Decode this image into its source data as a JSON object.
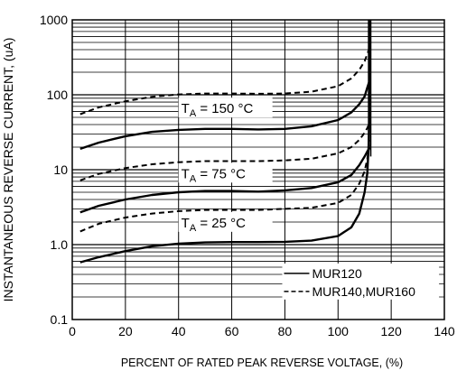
{
  "chart_data": {
    "type": "line",
    "xlabel": "PERCENT OF RATED PEAK REVERSE VOLTAGE, (%)",
    "ylabel": "INSTANTANEOUS REVERSE CURRENT, (uA)",
    "xlim": [
      0,
      140
    ],
    "ylim": [
      0.1,
      1000
    ],
    "yscale": "log",
    "grid": true,
    "x_ticks": [
      "0",
      "20",
      "40",
      "60",
      "80",
      "100",
      "120",
      "140"
    ],
    "y_ticks": [
      {
        "v": 0.1,
        "label": "0.1"
      },
      {
        "v": 1,
        "label": "1.0"
      },
      {
        "v": 10,
        "label": "10"
      },
      {
        "v": 100,
        "label": "100"
      },
      {
        "v": 1000,
        "label": "1000"
      }
    ],
    "legend_position": "bottom-right",
    "series": [
      {
        "name": "MUR120",
        "style": "solid",
        "temperature": "25",
        "x": [
          3,
          10,
          20,
          30,
          40,
          50,
          60,
          70,
          80,
          90,
          100,
          105,
          108,
          110,
          111,
          111.5,
          112,
          112
        ],
        "y": [
          0.58,
          0.68,
          0.82,
          0.95,
          1.03,
          1.07,
          1.08,
          1.08,
          1.09,
          1.13,
          1.3,
          1.7,
          2.6,
          5.0,
          9.0,
          20,
          100,
          1000
        ]
      },
      {
        "name": "MUR140,MUR160",
        "style": "dashed",
        "temperature": "25",
        "x": [
          3,
          10,
          20,
          30,
          40,
          50,
          60,
          70,
          80,
          90,
          100,
          105,
          108,
          110,
          111,
          112
        ],
        "y": [
          1.5,
          1.9,
          2.3,
          2.6,
          2.8,
          2.9,
          2.9,
          2.9,
          3.0,
          3.1,
          3.6,
          4.6,
          6.5,
          9.5,
          14,
          25
        ]
      },
      {
        "name": "MUR120",
        "style": "solid",
        "temperature": "75",
        "x": [
          3,
          10,
          20,
          30,
          40,
          50,
          60,
          70,
          80,
          90,
          100,
          105,
          108,
          110,
          111,
          112
        ],
        "y": [
          2.7,
          3.3,
          4.0,
          4.6,
          5.0,
          5.2,
          5.2,
          5.1,
          5.3,
          5.7,
          6.8,
          8.5,
          11.5,
          15,
          17.5,
          20
        ]
      },
      {
        "name": "MUR140,MUR160",
        "style": "dashed",
        "temperature": "75",
        "x": [
          3,
          10,
          20,
          30,
          40,
          50,
          60,
          70,
          80,
          90,
          100,
          105,
          108,
          110,
          111,
          112
        ],
        "y": [
          7.2,
          8.8,
          10.5,
          11.8,
          12.6,
          13.0,
          13.0,
          13.0,
          13.3,
          14.0,
          16.5,
          20,
          25,
          31,
          36,
          43
        ]
      },
      {
        "name": "MUR120",
        "style": "solid",
        "temperature": "150",
        "x": [
          3,
          10,
          20,
          30,
          40,
          50,
          60,
          70,
          80,
          90,
          100,
          105,
          108,
          110,
          111,
          112
        ],
        "y": [
          19,
          23,
          28,
          32,
          34,
          35,
          35,
          34.5,
          35,
          38,
          46,
          58,
          75,
          95,
          125,
          160
        ]
      },
      {
        "name": "MUR140,MUR160",
        "style": "dashed",
        "temperature": "150",
        "x": [
          3,
          10,
          20,
          30,
          40,
          50,
          60,
          70,
          80,
          90,
          100,
          105,
          108,
          110,
          111,
          112
        ],
        "y": [
          55,
          68,
          82,
          94,
          101,
          104,
          104,
          103,
          104,
          110,
          130,
          165,
          215,
          280,
          350,
          440
        ]
      }
    ],
    "annotations": [
      {
        "temperature": "150",
        "main": "T",
        "sub": "A",
        "rest": " = 150 °C"
      },
      {
        "temperature": "75",
        "main": "T",
        "sub": "A",
        "rest": " = 75 °C"
      },
      {
        "temperature": "25",
        "main": "T",
        "sub": "A",
        "rest": " = 25 °C"
      }
    ],
    "legend": [
      {
        "label": "MUR120",
        "style": "solid"
      },
      {
        "label": "MUR140,MUR160",
        "style": "dashed"
      }
    ]
  }
}
